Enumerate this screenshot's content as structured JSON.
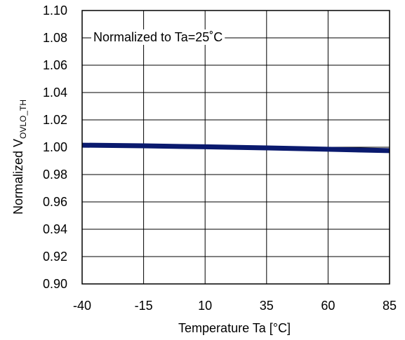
{
  "chart_data": {
    "type": "line",
    "title": "",
    "xlabel": "Temperature Ta [°C]",
    "ylabel_main": "Normalized V",
    "ylabel_sub": "OVLO_TH",
    "annotation": "Normalized to Ta=25˚C",
    "xlim": [
      -40,
      85
    ],
    "ylim": [
      0.9,
      1.1
    ],
    "x_ticks": [
      -40,
      -15,
      10,
      35,
      60,
      85
    ],
    "x_tick_labels": [
      "-40",
      "-15",
      "10",
      "35",
      "60",
      "85"
    ],
    "y_ticks": [
      0.9,
      0.92,
      0.94,
      0.96,
      0.98,
      1.0,
      1.02,
      1.04,
      1.06,
      1.08,
      1.1
    ],
    "y_tick_labels": [
      "0.90",
      "0.92",
      "0.94",
      "0.96",
      "0.98",
      "1.00",
      "1.02",
      "1.04",
      "1.06",
      "1.08",
      "1.10"
    ],
    "grid": true,
    "series": [
      {
        "color": "#0a1a6e",
        "x": [
          -40,
          -15,
          10,
          35,
          60,
          85
        ],
        "y": [
          1.0015,
          1.001,
          1.0003,
          0.9995,
          0.9985,
          0.9975
        ]
      }
    ]
  }
}
